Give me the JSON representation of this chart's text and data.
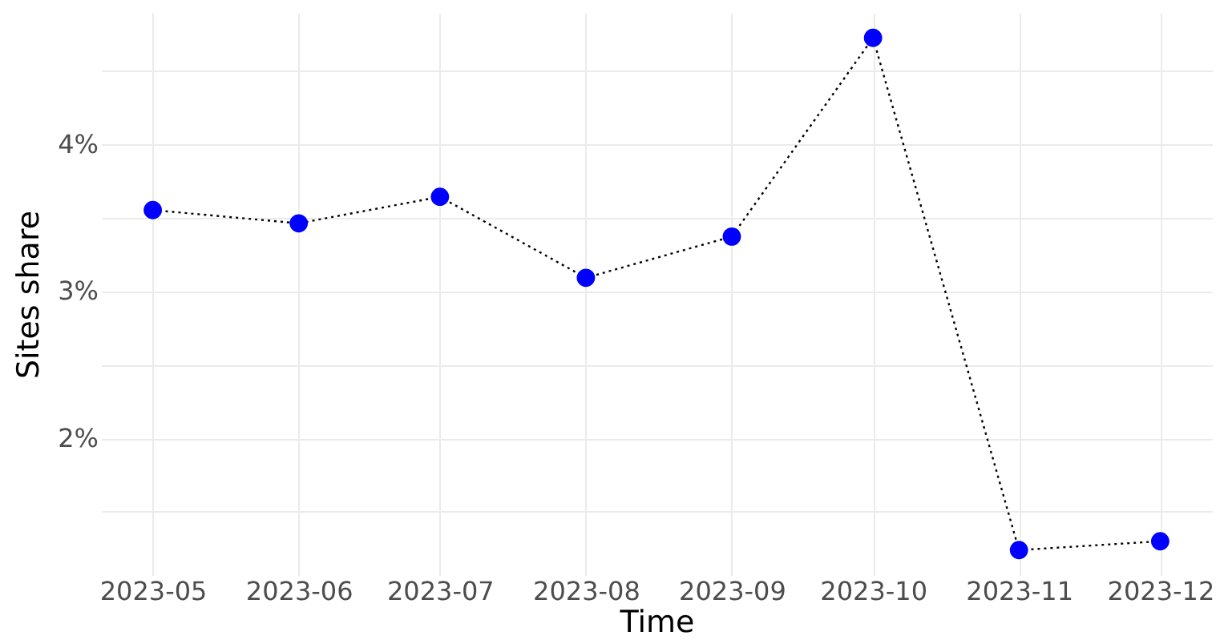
{
  "chart_data": {
    "type": "line",
    "xlabel": "Time",
    "ylabel": "Sites share",
    "x": [
      "2023-05-01",
      "2023-06-01",
      "2023-07-01",
      "2023-08-01",
      "2023-09-01",
      "2023-10-01",
      "2023-11-01",
      "2023-12-01"
    ],
    "series": [
      {
        "color": "#0000ff",
        "values": [
          3.55,
          3.46,
          3.64,
          3.09,
          3.37,
          4.72,
          1.24,
          1.3
        ]
      }
    ],
    "line_style": "dotted",
    "marker": "circle",
    "xlim": [
      "2023-04-20",
      "2023-12-12"
    ],
    "xticks": [
      {
        "value": "2023-05-01",
        "label": "2023-05"
      },
      {
        "value": "2023-06-01",
        "label": "2023-06"
      },
      {
        "value": "2023-07-01",
        "label": "2023-07"
      },
      {
        "value": "2023-08-01",
        "label": "2023-08"
      },
      {
        "value": "2023-09-01",
        "label": "2023-09"
      },
      {
        "value": "2023-10-01",
        "label": "2023-10"
      },
      {
        "value": "2023-11-01",
        "label": "2023-11"
      },
      {
        "value": "2023-12-01",
        "label": "2023-12"
      }
    ],
    "ylim": [
      1.07,
      4.89
    ],
    "yticks": [
      {
        "value": 1.5,
        "label": null
      },
      {
        "value": 2,
        "label": "2%"
      },
      {
        "value": 2.5,
        "label": null
      },
      {
        "value": 3,
        "label": "3%"
      },
      {
        "value": 3.5,
        "label": null
      },
      {
        "value": 4,
        "label": "4%"
      },
      {
        "value": 4.5,
        "label": null
      }
    ],
    "grid": true
  }
}
